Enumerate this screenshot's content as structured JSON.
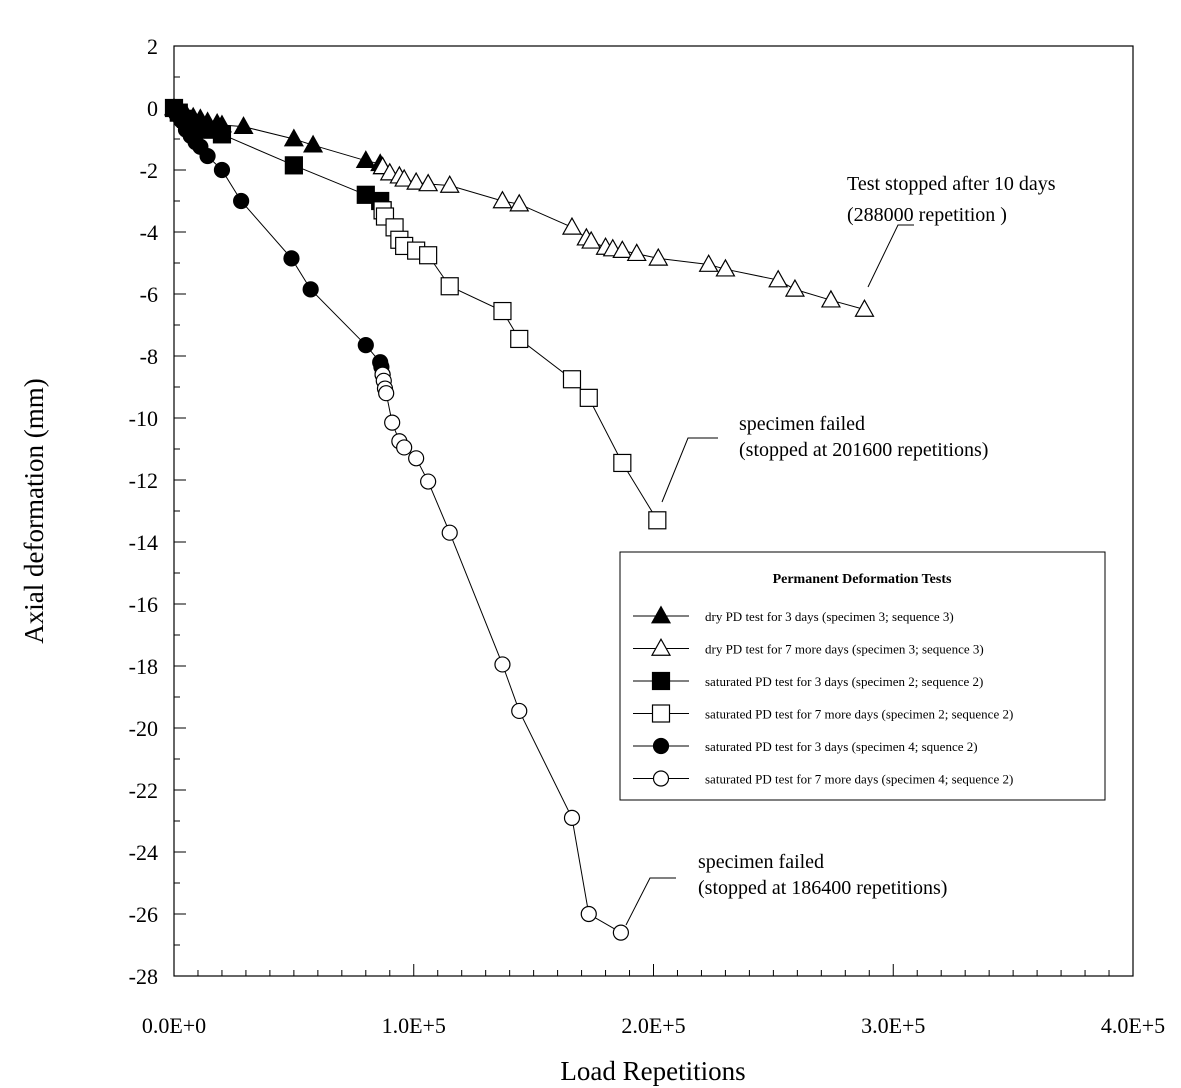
{
  "chart_data": {
    "type": "line",
    "title": "",
    "xlabel": "Load Repetitions",
    "ylabel": "Axial deformation (mm)",
    "xlim": [
      0,
      400000
    ],
    "ylim": [
      -28,
      2
    ],
    "x_ticks": [
      {
        "value": 0,
        "label": "0.0E+0"
      },
      {
        "value": 100000,
        "label": "1.0E+5"
      },
      {
        "value": 200000,
        "label": "2.0E+5"
      },
      {
        "value": 300000,
        "label": "3.0E+5"
      },
      {
        "value": 400000,
        "label": "4.0E+5"
      }
    ],
    "y_ticks": [
      {
        "value": 2,
        "label": "2"
      },
      {
        "value": 0,
        "label": "0"
      },
      {
        "value": -2,
        "label": "-2"
      },
      {
        "value": -4,
        "label": "-4"
      },
      {
        "value": -6,
        "label": "-6"
      },
      {
        "value": -8,
        "label": "-8"
      },
      {
        "value": -10,
        "label": "-10"
      },
      {
        "value": -12,
        "label": "-12"
      },
      {
        "value": -14,
        "label": "-14"
      },
      {
        "value": -16,
        "label": "-16"
      },
      {
        "value": -18,
        "label": "-18"
      },
      {
        "value": -20,
        "label": "-20"
      },
      {
        "value": -22,
        "label": "-22"
      },
      {
        "value": -24,
        "label": "-24"
      },
      {
        "value": -26,
        "label": "-26"
      },
      {
        "value": -28,
        "label": "-28"
      }
    ],
    "grid": false,
    "legend": {
      "title": "Permanent Deformation Tests",
      "position": "lower-right"
    },
    "series": [
      {
        "name": "dry PD test for 3 days (specimen 3; sequence 3)",
        "marker": "triangle",
        "filled": true,
        "points": [
          [
            0,
            0
          ],
          [
            3000,
            -0.1
          ],
          [
            5000,
            -0.2
          ],
          [
            8000,
            -0.3
          ],
          [
            11000,
            -0.35
          ],
          [
            14000,
            -0.45
          ],
          [
            18000,
            -0.5
          ],
          [
            20000,
            -0.55
          ],
          [
            29000,
            -0.6
          ],
          [
            50000,
            -1.0
          ],
          [
            58000,
            -1.2
          ],
          [
            80000,
            -1.7
          ],
          [
            86000,
            -1.8
          ],
          [
            87000,
            -1.9
          ]
        ]
      },
      {
        "name": "dry PD test for 7 more days (specimen 3; sequence 3)",
        "marker": "triangle",
        "filled": false,
        "points": [
          [
            87000,
            -1.9
          ],
          [
            90000,
            -2.1
          ],
          [
            94000,
            -2.2
          ],
          [
            96000,
            -2.3
          ],
          [
            101000,
            -2.4
          ],
          [
            106000,
            -2.45
          ],
          [
            115000,
            -2.5
          ],
          [
            137000,
            -3.0
          ],
          [
            144000,
            -3.1
          ],
          [
            166000,
            -3.85
          ],
          [
            172000,
            -4.2
          ],
          [
            174000,
            -4.3
          ],
          [
            180000,
            -4.5
          ],
          [
            183000,
            -4.55
          ],
          [
            187000,
            -4.6
          ],
          [
            193000,
            -4.7
          ],
          [
            202000,
            -4.85
          ],
          [
            223000,
            -5.05
          ],
          [
            230000,
            -5.2
          ],
          [
            252000,
            -5.55
          ],
          [
            259000,
            -5.85
          ],
          [
            274000,
            -6.2
          ],
          [
            288000,
            -6.5
          ]
        ]
      },
      {
        "name": "saturated PD test for 3 days (specimen 2; sequence 2)",
        "marker": "square",
        "filled": true,
        "points": [
          [
            0,
            0
          ],
          [
            2000,
            -0.15
          ],
          [
            5000,
            -0.35
          ],
          [
            8000,
            -0.5
          ],
          [
            11000,
            -0.6
          ],
          [
            14000,
            -0.7
          ],
          [
            20000,
            -0.85
          ],
          [
            50000,
            -1.85
          ],
          [
            80000,
            -2.8
          ],
          [
            86000,
            -3.0
          ],
          [
            87000,
            -3.3
          ]
        ]
      },
      {
        "name": "saturated PD test for 7 more days (specimen 2; sequence 2)",
        "marker": "square",
        "filled": false,
        "points": [
          [
            87000,
            -3.3
          ],
          [
            88000,
            -3.5
          ],
          [
            92000,
            -3.85
          ],
          [
            94000,
            -4.25
          ],
          [
            96000,
            -4.45
          ],
          [
            101000,
            -4.6
          ],
          [
            106000,
            -4.75
          ],
          [
            115000,
            -5.75
          ],
          [
            137000,
            -6.55
          ],
          [
            144000,
            -7.45
          ],
          [
            166000,
            -8.75
          ],
          [
            173000,
            -9.35
          ],
          [
            187000,
            -11.45
          ],
          [
            201600,
            -13.3
          ]
        ]
      },
      {
        "name": "saturated PD test for 3 days (specimen 4; squence 2)",
        "marker": "circle",
        "filled": true,
        "points": [
          [
            0,
            0
          ],
          [
            1000,
            -0.2
          ],
          [
            3000,
            -0.4
          ],
          [
            5000,
            -0.7
          ],
          [
            7000,
            -0.9
          ],
          [
            9000,
            -1.1
          ],
          [
            11000,
            -1.25
          ],
          [
            14000,
            -1.55
          ],
          [
            20000,
            -2.0
          ],
          [
            28000,
            -3.0
          ],
          [
            49000,
            -4.85
          ],
          [
            57000,
            -5.85
          ],
          [
            80000,
            -7.65
          ],
          [
            86000,
            -8.2
          ],
          [
            86500,
            -8.35
          ],
          [
            87000,
            -8.6
          ]
        ]
      },
      {
        "name": "saturated PD test for 7 more days (specimen 4; sequence 2)",
        "marker": "circle",
        "filled": false,
        "points": [
          [
            87000,
            -8.6
          ],
          [
            87500,
            -8.8
          ],
          [
            88000,
            -9.05
          ],
          [
            88500,
            -9.2
          ],
          [
            91000,
            -10.15
          ],
          [
            94000,
            -10.75
          ],
          [
            96000,
            -10.95
          ],
          [
            101000,
            -11.3
          ],
          [
            106000,
            -12.05
          ],
          [
            115000,
            -13.7
          ],
          [
            137000,
            -17.95
          ],
          [
            144000,
            -19.45
          ],
          [
            166000,
            -22.9
          ],
          [
            173000,
            -26.0
          ],
          [
            186400,
            -26.6
          ]
        ]
      }
    ],
    "annotations": [
      {
        "lines": [
          "Test stopped after 10 days",
          "(288000 repetition )"
        ],
        "target": [
          288000,
          -6.5
        ]
      },
      {
        "lines": [
          "specimen failed",
          "(stopped at 201600 repetitions)"
        ],
        "target": [
          201600,
          -13.3
        ]
      },
      {
        "lines": [
          "specimen failed",
          "(stopped at 186400 repetitions)"
        ],
        "target": [
          186400,
          -26.6
        ]
      }
    ]
  }
}
